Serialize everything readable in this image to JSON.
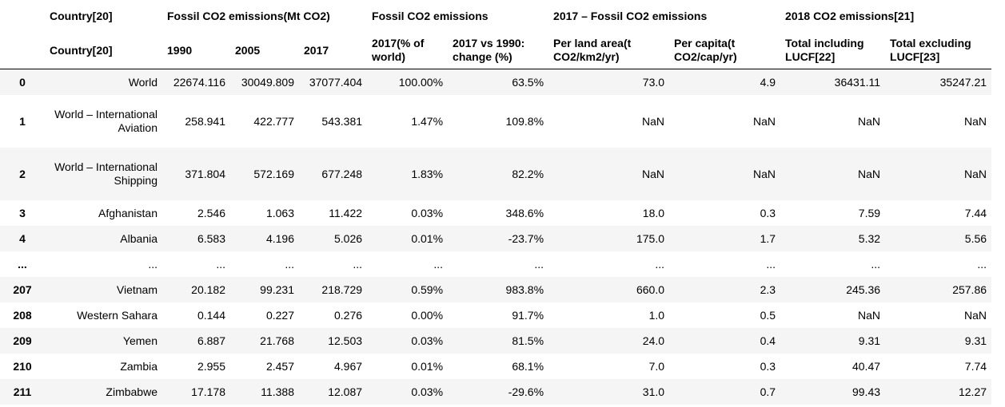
{
  "table": {
    "header_groups": [
      {
        "title": "Country[20]",
        "columns": [
          "Country[20]"
        ]
      },
      {
        "title": "Fossil CO2 emissions(Mt CO2)",
        "columns": [
          "1990",
          "2005",
          "2017"
        ]
      },
      {
        "title": "Fossil CO2 emissions",
        "columns": [
          "2017(% of world)",
          "2017 vs 1990: change (%)"
        ]
      },
      {
        "title": "2017 – Fossil CO2 emissions",
        "columns": [
          "Per land area(t CO2/km2/yr)",
          "Per capita(t CO2/cap/yr)"
        ]
      },
      {
        "title": "2018 CO2 emissions[21]",
        "columns": [
          "Total including LUCF[22]",
          "Total excluding LUCF[23]"
        ]
      }
    ],
    "rows": [
      {
        "index": "0",
        "cells": [
          "World",
          "22674.116",
          "30049.809",
          "37077.404",
          "100.00%",
          "63.5%",
          "73.0",
          "4.9",
          "36431.11",
          "35247.21"
        ]
      },
      {
        "index": "1",
        "cells": [
          "World – International Aviation",
          "258.941",
          "422.777",
          "543.381",
          "1.47%",
          "109.8%",
          "NaN",
          "NaN",
          "NaN",
          "NaN"
        ]
      },
      {
        "index": "2",
        "cells": [
          "World – International Shipping",
          "371.804",
          "572.169",
          "677.248",
          "1.83%",
          "82.2%",
          "NaN",
          "NaN",
          "NaN",
          "NaN"
        ]
      },
      {
        "index": "3",
        "cells": [
          "Afghanistan",
          "2.546",
          "1.063",
          "11.422",
          "0.03%",
          "348.6%",
          "18.0",
          "0.3",
          "7.59",
          "7.44"
        ]
      },
      {
        "index": "4",
        "cells": [
          "Albania",
          "6.583",
          "4.196",
          "5.026",
          "0.01%",
          "-23.7%",
          "175.0",
          "1.7",
          "5.32",
          "5.56"
        ]
      },
      {
        "index": "...",
        "cells": [
          "...",
          "...",
          "...",
          "...",
          "...",
          "...",
          "...",
          "...",
          "...",
          "..."
        ]
      },
      {
        "index": "207",
        "cells": [
          "Vietnam",
          "20.182",
          "99.231",
          "218.729",
          "0.59%",
          "983.8%",
          "660.0",
          "2.3",
          "245.36",
          "257.86"
        ]
      },
      {
        "index": "208",
        "cells": [
          "Western Sahara",
          "0.144",
          "0.227",
          "0.276",
          "0.00%",
          "91.7%",
          "1.0",
          "0.5",
          "NaN",
          "NaN"
        ]
      },
      {
        "index": "209",
        "cells": [
          "Yemen",
          "6.887",
          "21.768",
          "12.503",
          "0.03%",
          "81.5%",
          "24.0",
          "0.4",
          "9.31",
          "9.31"
        ]
      },
      {
        "index": "210",
        "cells": [
          "Zambia",
          "2.955",
          "2.457",
          "4.967",
          "0.01%",
          "68.1%",
          "7.0",
          "0.3",
          "40.47",
          "7.74"
        ]
      },
      {
        "index": "211",
        "cells": [
          "Zimbabwe",
          "17.178",
          "11.388",
          "12.087",
          "0.03%",
          "-29.6%",
          "31.0",
          "0.7",
          "99.43",
          "12.27"
        ]
      }
    ]
  }
}
